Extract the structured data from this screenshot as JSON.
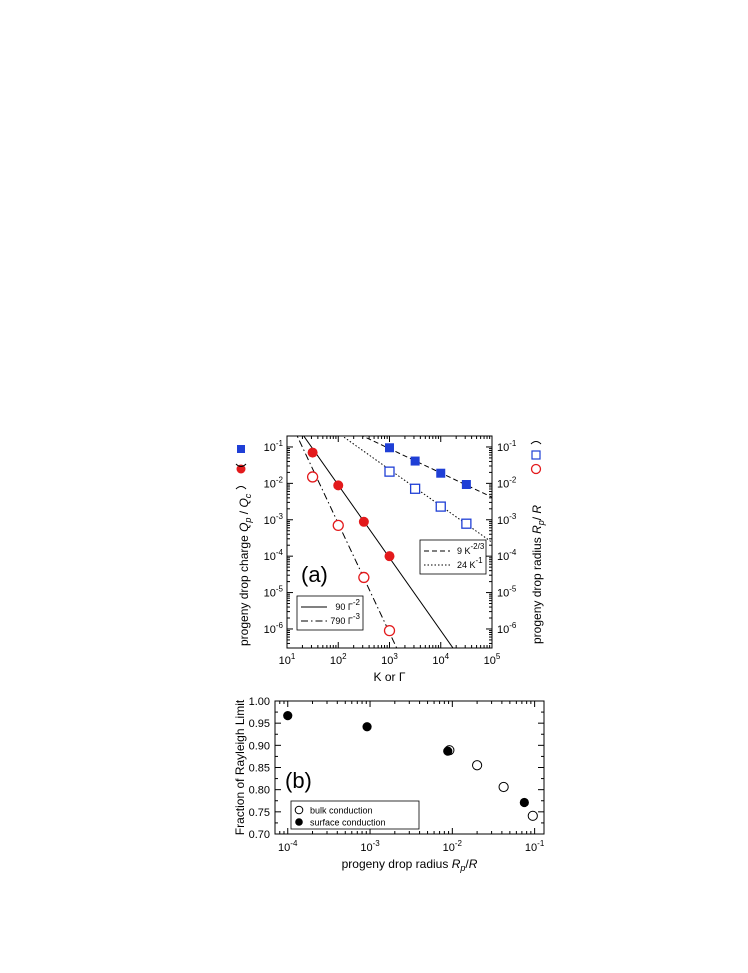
{
  "chart_data": [
    {
      "type": "scatter",
      "panel_label": "(a)",
      "xlabel": "K or Γ",
      "ylabel_left": "progeny drop charge Q_p / Q_c",
      "ylabel_right": "progeny drop radius R_p / R",
      "x_scale": "log",
      "y_scale": "log",
      "xlim": [
        10,
        100000
      ],
      "ylim": [
        3e-07,
        0.2
      ],
      "x_ticks": [
        10,
        100,
        1000,
        10000,
        100000
      ],
      "y_ticks": [
        1e-06,
        1e-05,
        0.0001,
        0.001,
        0.01,
        0.1
      ],
      "series": [
        {
          "marker": "filled-square",
          "color": "#1f3fd6",
          "axis": "left",
          "x": [
            1000,
            3162,
            10000,
            31623
          ],
          "y": [
            0.095,
            0.041,
            0.019,
            0.0093
          ]
        },
        {
          "marker": "open-square",
          "color": "#1f3fd6",
          "axis": "right",
          "x": [
            1000,
            3162,
            10000,
            31623
          ],
          "y": [
            0.021,
            0.0071,
            0.0023,
            0.00078
          ]
        },
        {
          "marker": "filled-circle",
          "color": "#e31a1c",
          "axis": "left",
          "x": [
            31.6,
            100,
            316,
            1000
          ],
          "y": [
            0.07,
            0.0088,
            0.00088,
            0.0001
          ]
        },
        {
          "marker": "open-circle",
          "color": "#e31a1c",
          "axis": "right",
          "x": [
            31.6,
            100,
            316,
            1000
          ],
          "y": [
            0.015,
            0.0007,
            2.6e-05,
            9e-07
          ]
        }
      ],
      "fits": [
        {
          "label": "90 Γ⁻²",
          "style": "solid",
          "coef": 90,
          "exp": -2
        },
        {
          "label": "790 Γ⁻³",
          "style": "dash-dot",
          "coef": 790,
          "exp": -3
        },
        {
          "label": "9 K^-2/3",
          "style": "dashed",
          "coef": 9,
          "exp": -0.667
        },
        {
          "label": "24 K⁻¹",
          "style": "dotted",
          "coef": 24,
          "exp": -1
        }
      ],
      "legend_fits_left": [
        {
          "text": "90 Γ",
          "sup": "-2",
          "style": "solid"
        },
        {
          "text": "790 Γ",
          "sup": "-3",
          "style": "dash-dot"
        }
      ],
      "legend_fits_right": [
        {
          "text": "9 K",
          "sup": "-2/3",
          "style": "dashed"
        },
        {
          "text": "24 K",
          "sup": "-1",
          "style": "dotted"
        }
      ]
    },
    {
      "type": "scatter",
      "panel_label": "(b)",
      "xlabel": "progeny drop radius R_p/R",
      "ylabel": "Fraction of Rayleigh Limit",
      "x_scale": "log",
      "xlim": [
        7e-05,
        0.13
      ],
      "ylim": [
        0.7,
        1.0
      ],
      "x_ticks": [
        0.0001,
        0.001,
        0.01,
        0.1
      ],
      "y_ticks": [
        0.7,
        0.75,
        0.8,
        0.85,
        0.9,
        0.95,
        1.0
      ],
      "y_tick_labels": [
        "0.70",
        "0.75",
        "0.80",
        "0.85",
        "0.90",
        "0.95",
        "1.00"
      ],
      "series": [
        {
          "name": "bulk conduction",
          "marker": "open-circle",
          "x": [
            0.0092,
            0.02,
            0.042,
            0.095
          ],
          "y": [
            0.889,
            0.855,
            0.806,
            0.741
          ]
        },
        {
          "name": "surface conduction",
          "marker": "filled-circle",
          "x": [
            0.0001,
            0.00092,
            0.0088,
            0.075
          ],
          "y": [
            0.967,
            0.942,
            0.887,
            0.771
          ]
        }
      ],
      "legend_position": "lower-left"
    }
  ]
}
